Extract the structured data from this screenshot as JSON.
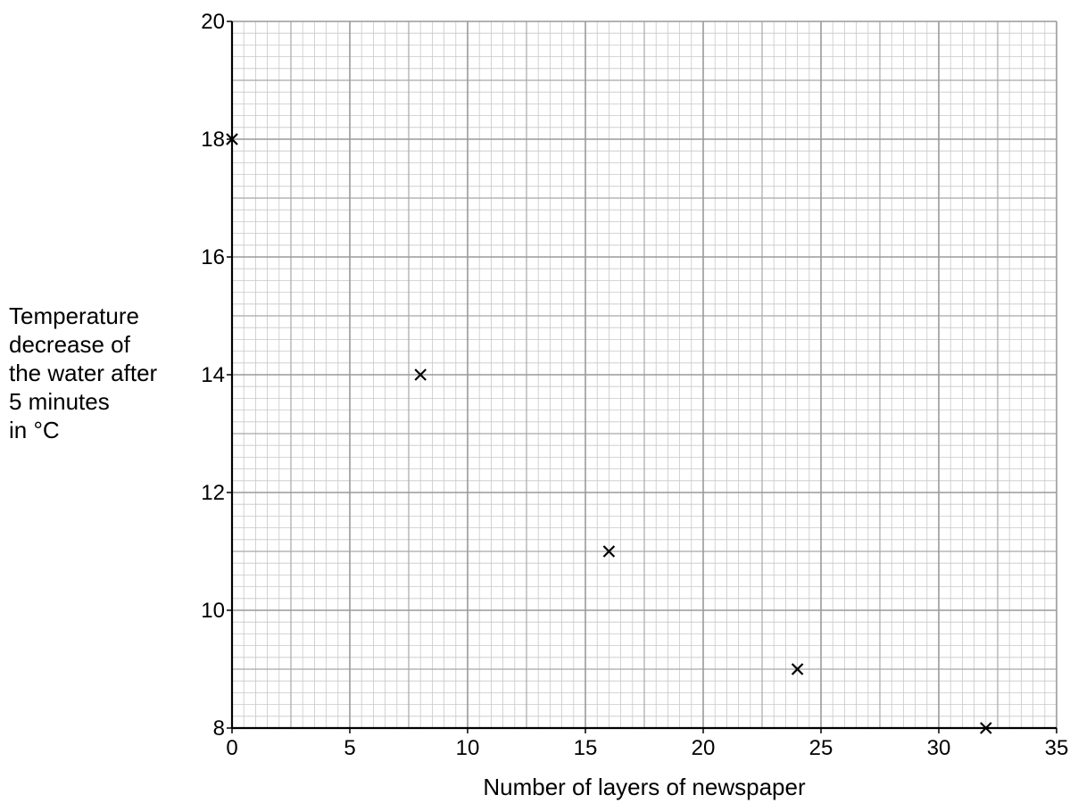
{
  "chart_data": {
    "type": "scatter",
    "title": "",
    "xlabel": "Number of layers of newspaper",
    "ylabel_lines": [
      "Temperature",
      "decrease of",
      "the water after",
      "5 minutes",
      "in °C"
    ],
    "xlim": [
      0,
      35
    ],
    "ylim": [
      8,
      20
    ],
    "x_ticks": [
      0,
      5,
      10,
      15,
      20,
      25,
      30,
      35
    ],
    "y_ticks": [
      8,
      10,
      12,
      14,
      16,
      18,
      20
    ],
    "grid": true,
    "marker": "x",
    "points": [
      {
        "x": 0,
        "y": 18
      },
      {
        "x": 8,
        "y": 14
      },
      {
        "x": 16,
        "y": 11
      },
      {
        "x": 24,
        "y": 9
      },
      {
        "x": 32,
        "y": 8
      }
    ]
  }
}
